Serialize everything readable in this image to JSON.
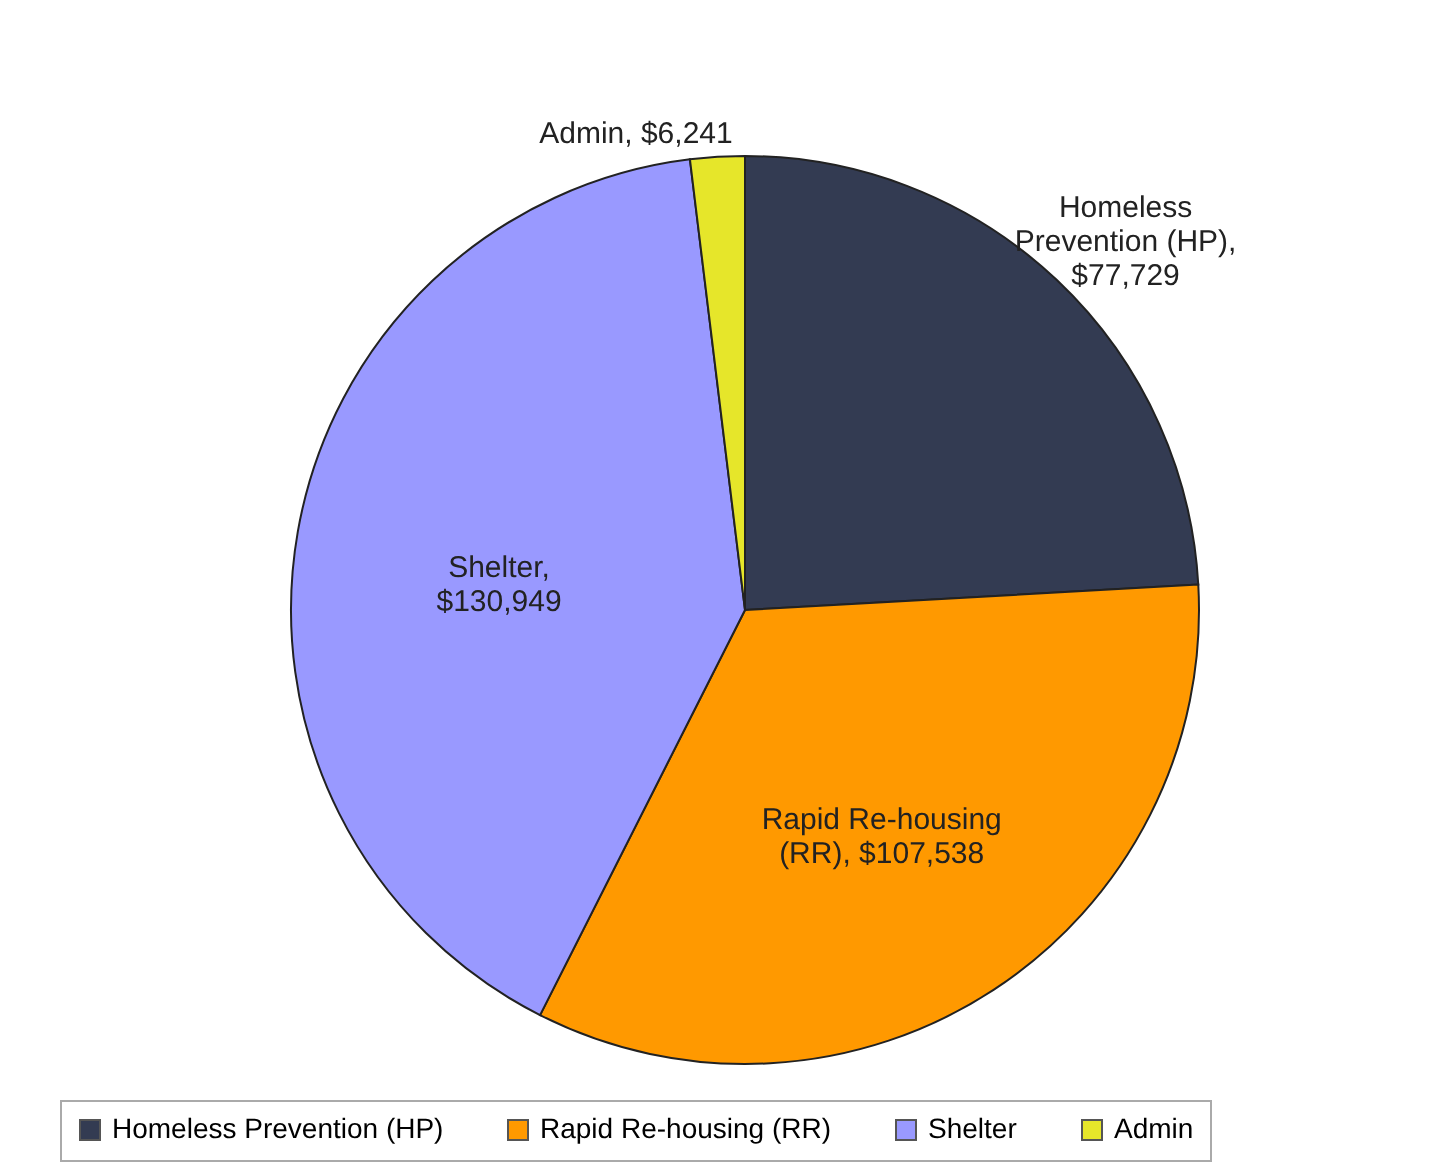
{
  "chart_data": {
    "type": "pie",
    "categories": [
      "Homeless Prevention (HP)",
      "Rapid Re-housing (RR)",
      "Shelter",
      "Admin"
    ],
    "values": [
      77729,
      107538,
      130949,
      6241
    ],
    "value_labels": [
      "Homeless Prevention (HP), $77,729",
      "Rapid Re-housing (RR), $107,538",
      "Shelter, $130,949",
      "Admin, $6,241"
    ],
    "colors": [
      "#333b52",
      "#ff9900",
      "#9999ff",
      "#e6e62a"
    ],
    "legend": "bottom"
  }
}
